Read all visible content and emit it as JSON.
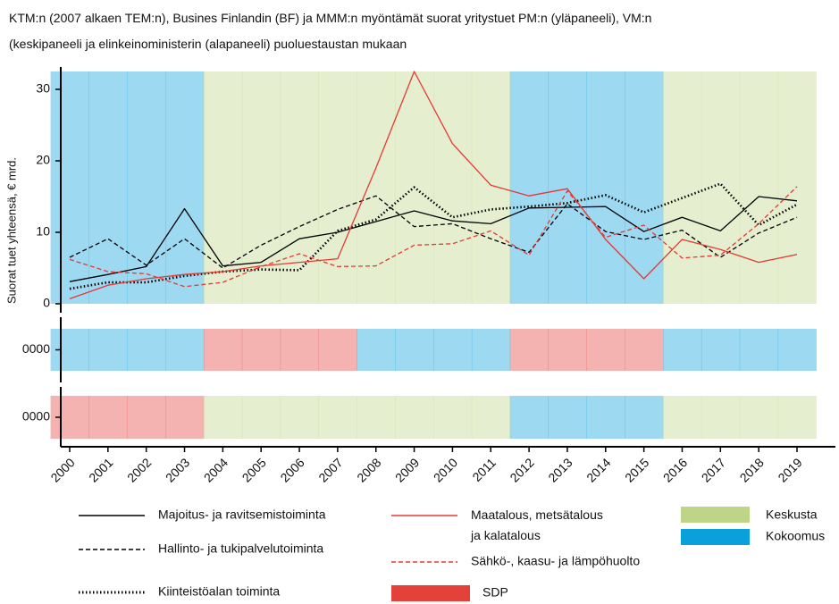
{
  "chart_data": {
    "type": "line",
    "title": "KTM:n (2007 alkaen TEM:n), Busines Finlandin (BF) ja MMM:n myöntämät suorat yritystuet PM:n (yläpaneeli), VM:n\n(keskipaneeli ja elinkeinoministerin (alapaneeli) puoluestaustan mukaan",
    "y_label": "Suorat tuet yhteensä, € mrd.",
    "x": [
      2000,
      2001,
      2002,
      2003,
      2004,
      2005,
      2006,
      2007,
      2008,
      2009,
      2010,
      2011,
      2012,
      2013,
      2014,
      2015,
      2016,
      2017,
      2018,
      2019
    ],
    "xlim": [
      2000,
      2019
    ],
    "ylim": [
      0,
      32.5
    ],
    "yticks": [
      0,
      10,
      20,
      30
    ],
    "series": [
      {
        "name": "Majoitus- ja ravitsemistoiminta",
        "color": "#000000",
        "dash": "solid",
        "values": [
          3.1,
          4.1,
          5.2,
          13.3,
          5.3,
          5.8,
          9.1,
          10,
          11.5,
          13,
          11.6,
          11.2,
          13.4,
          13.5,
          13.6,
          10.1,
          12.1,
          10.2,
          15,
          14.4
        ]
      },
      {
        "name": "Hallinto- ja tukipalvelutoiminta",
        "color": "#000000",
        "dash": "dashed",
        "values": [
          6.5,
          9.1,
          5.4,
          9.1,
          5,
          8.2,
          10.8,
          13.2,
          15.1,
          10.8,
          11.2,
          9.1,
          7.2,
          14,
          10.1,
          9,
          10.3,
          6.5,
          9.9,
          12.1
        ]
      },
      {
        "name": "Kiinteistöalan toiminta",
        "color": "#000000",
        "dash": "dotted",
        "values": [
          2.1,
          3,
          3,
          3.9,
          4.5,
          4.8,
          4.7,
          10.2,
          11.8,
          16.3,
          12.1,
          13.2,
          13.6,
          14.1,
          15.2,
          12.8,
          14.8,
          16.8,
          11,
          13.9
        ]
      },
      {
        "name": "Maatalous, metsätalous\nja kalatalous",
        "color": "#e53935",
        "dash": "solid",
        "values": [
          0.7,
          2.6,
          3.5,
          4.1,
          4.5,
          5.3,
          5.8,
          6.3,
          19,
          32.5,
          22.4,
          16.6,
          15.1,
          16.1,
          9,
          3.5,
          9,
          7.6,
          5.8,
          6.9
        ]
      },
      {
        "name": "Sähkö-, kaasu- ja lämpöhuolto",
        "color": "#e53935",
        "dash": "dashed",
        "values": [
          6.2,
          4.5,
          4.2,
          2.4,
          3,
          5.2,
          7,
          5.2,
          5.3,
          8.2,
          8.4,
          10.2,
          6.8,
          15.8,
          9.3,
          11,
          6.4,
          6.8,
          11.2,
          16.4
        ]
      }
    ],
    "parties": [
      {
        "name": "Keskusta",
        "color": "#bed587"
      },
      {
        "name": "Kokoomus",
        "color": "#0aa0dc"
      },
      {
        "name": "SDP",
        "color": "#e3413a"
      }
    ],
    "band_opacity": 0.4,
    "panels": [
      {
        "party_by_year": [
          "Kokoomus",
          "Kokoomus",
          "Kokoomus",
          "Kokoomus",
          "Keskusta",
          "Keskusta",
          "Keskusta",
          "Keskusta",
          "Keskusta",
          "Keskusta",
          "Keskusta",
          "Keskusta",
          "Kokoomus",
          "Kokoomus",
          "Kokoomus",
          "Kokoomus",
          "Keskusta",
          "Keskusta",
          "Keskusta",
          "Keskusta"
        ]
      },
      {
        "tick_label": "0000",
        "party_by_year": [
          "Kokoomus",
          "Kokoomus",
          "Kokoomus",
          "Kokoomus",
          "SDP",
          "SDP",
          "SDP",
          "SDP",
          "Kokoomus",
          "Kokoomus",
          "Kokoomus",
          "Kokoomus",
          "SDP",
          "SDP",
          "SDP",
          "SDP",
          "Kokoomus",
          "Kokoomus",
          "Kokoomus",
          "Kokoomus"
        ]
      },
      {
        "tick_label": "0000",
        "party_by_year": [
          "SDP",
          "SDP",
          "SDP",
          "SDP",
          "Keskusta",
          "Keskusta",
          "Keskusta",
          "Keskusta",
          "Keskusta",
          "Keskusta",
          "Keskusta",
          "Keskusta",
          "Kokoomus",
          "Kokoomus",
          "Kokoomus",
          "Kokoomus",
          "Keskusta",
          "Keskusta",
          "Keskusta",
          "Keskusta"
        ]
      }
    ]
  }
}
